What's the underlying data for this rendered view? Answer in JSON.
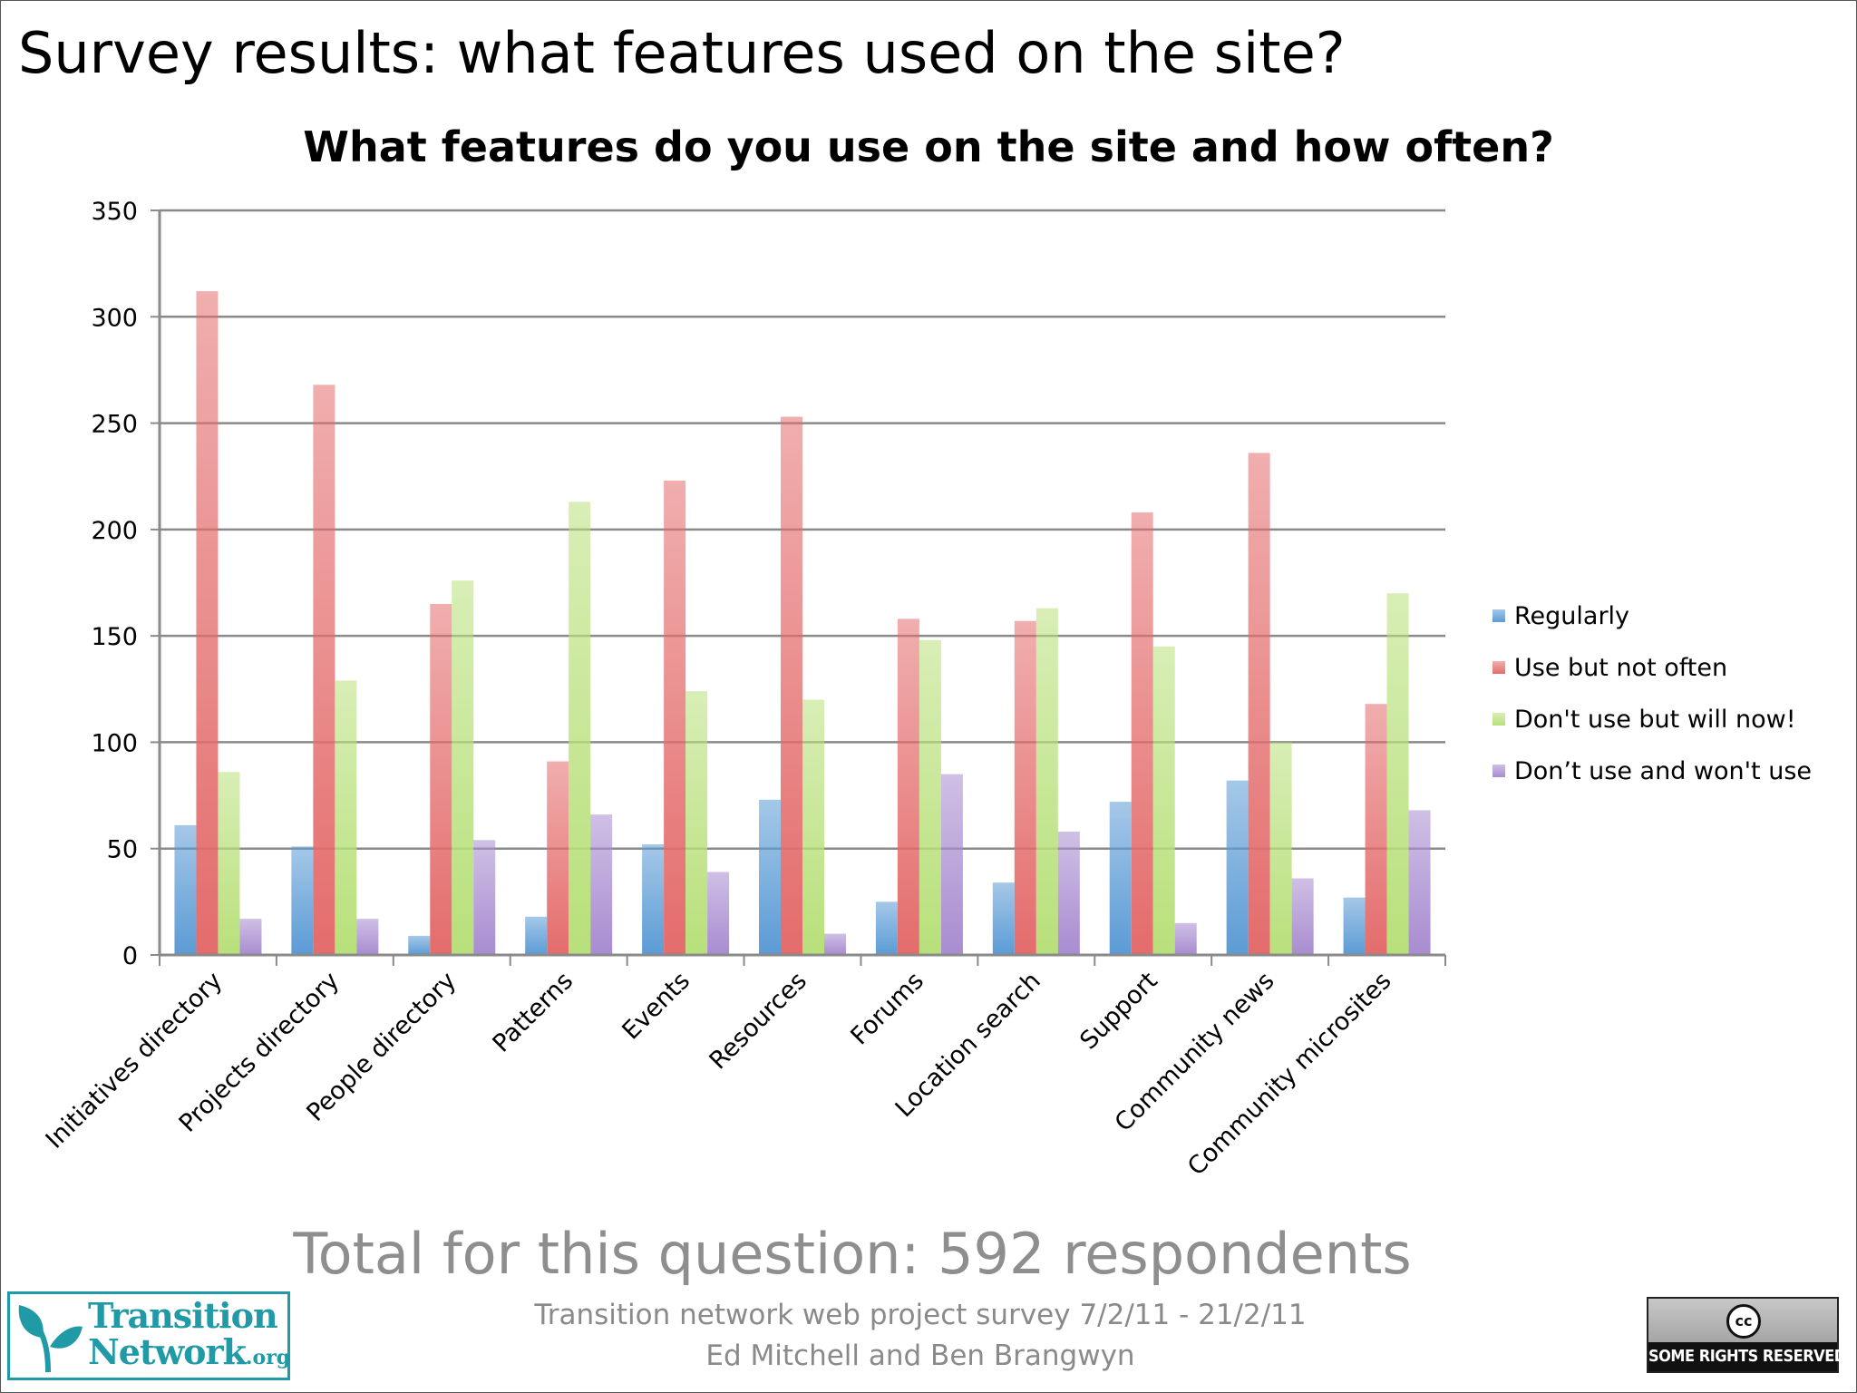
{
  "slide": {
    "title": "Survey results: what features used on the site?",
    "total_text": "Total for this question: 592 respondents",
    "credit_line1": "Transition network web project survey 7/2/11 - 21/2/11",
    "credit_line2": "Ed Mitchell and Ben Brangwyn",
    "logo_text_main1": "Transition",
    "logo_text_main2": "Network",
    "logo_text_org": ".org",
    "cc_icon": "cc",
    "cc_text": "SOME RIGHTS RESERVED"
  },
  "colors": {
    "regularly": "#5b9bd5",
    "use_not_often": "#e46c6c",
    "dont_use_will": "#b8e07a",
    "dont_use_wont": "#a88cd0",
    "logo": "#1f9aa6"
  },
  "chart_data": {
    "type": "bar",
    "title": "What features do you use on the site and how often?",
    "xlabel": "",
    "ylabel": "",
    "ylim": [
      0,
      350
    ],
    "yticks": [
      0,
      50,
      100,
      150,
      200,
      250,
      300,
      350
    ],
    "grid": true,
    "legend_position": "right",
    "categories": [
      "Initiatives directory",
      "Projects directory",
      "People directory",
      "Patterns",
      "Events",
      "Resources",
      "Forums",
      "Location search",
      "Support",
      "Community news",
      "Community microsites"
    ],
    "series": [
      {
        "name": "Regularly",
        "color": "#5b9bd5",
        "values": [
          61,
          51,
          9,
          18,
          52,
          73,
          25,
          34,
          72,
          82,
          27
        ]
      },
      {
        "name": "Use but not often",
        "color": "#e46c6c",
        "values": [
          312,
          268,
          165,
          91,
          223,
          253,
          158,
          157,
          208,
          236,
          118
        ]
      },
      {
        "name": "Don't use but will now!",
        "color": "#b8e07a",
        "values": [
          86,
          129,
          176,
          213,
          124,
          120,
          148,
          163,
          145,
          100,
          170
        ]
      },
      {
        "name": "Don’t use and won't use",
        "color": "#a88cd0",
        "values": [
          17,
          17,
          54,
          66,
          39,
          10,
          85,
          58,
          15,
          36,
          68
        ]
      }
    ]
  }
}
